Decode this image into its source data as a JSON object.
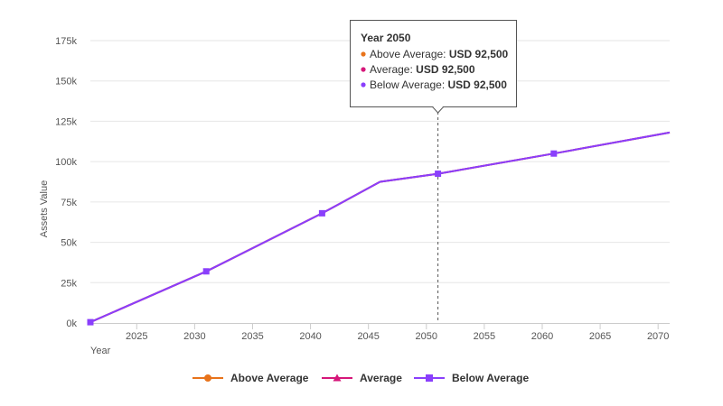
{
  "chart_data": {
    "type": "line",
    "xlabel": "Year",
    "ylabel": "Assets Value",
    "xlim": [
      2021,
      2071
    ],
    "ylim": [
      0,
      175000
    ],
    "x_ticks": [
      2025,
      2030,
      2035,
      2040,
      2045,
      2050,
      2055,
      2060,
      2065,
      2070
    ],
    "y_ticks": [
      {
        "value": 0,
        "label": "0k"
      },
      {
        "value": 25000,
        "label": "25k"
      },
      {
        "value": 50000,
        "label": "50k"
      },
      {
        "value": 75000,
        "label": "75k"
      },
      {
        "value": 100000,
        "label": "100k"
      },
      {
        "value": 125000,
        "label": "125k"
      },
      {
        "value": 150000,
        "label": "150k"
      },
      {
        "value": 175000,
        "label": "175k"
      }
    ],
    "grid": true,
    "legend_position": "bottom",
    "series": [
      {
        "name": "Above Average",
        "color": "#e8731b",
        "marker": "circle",
        "x": [
          2021,
          2031,
          2041,
          2046,
          2051,
          2061,
          2071
        ],
        "y": [
          500,
          32000,
          68000,
          87500,
          92500,
          105000,
          118000
        ]
      },
      {
        "name": "Average",
        "color": "#d6177a",
        "marker": "triangle",
        "x": [
          2021,
          2031,
          2041,
          2046,
          2051,
          2061,
          2071
        ],
        "y": [
          500,
          32000,
          68000,
          87500,
          92500,
          105000,
          118000
        ]
      },
      {
        "name": "Below Average",
        "color": "#8a3ffc",
        "marker": "square",
        "x": [
          2021,
          2031,
          2041,
          2046,
          2051,
          2061,
          2071
        ],
        "y": [
          500,
          32000,
          68000,
          87500,
          92500,
          105000,
          118000
        ],
        "marker_x": [
          2021,
          2031,
          2041,
          2051,
          2061
        ]
      }
    ],
    "crosshair_x": 2051,
    "tooltip": {
      "title": "Year 2050",
      "rows": [
        {
          "label": "Above Average:",
          "value": "USD 92,500",
          "color": "#e8731b"
        },
        {
          "label": "Average:",
          "value": "USD 92,500",
          "color": "#d6177a"
        },
        {
          "label": "Below Average:",
          "value": "USD 92,500",
          "color": "#8a3ffc"
        }
      ]
    }
  }
}
